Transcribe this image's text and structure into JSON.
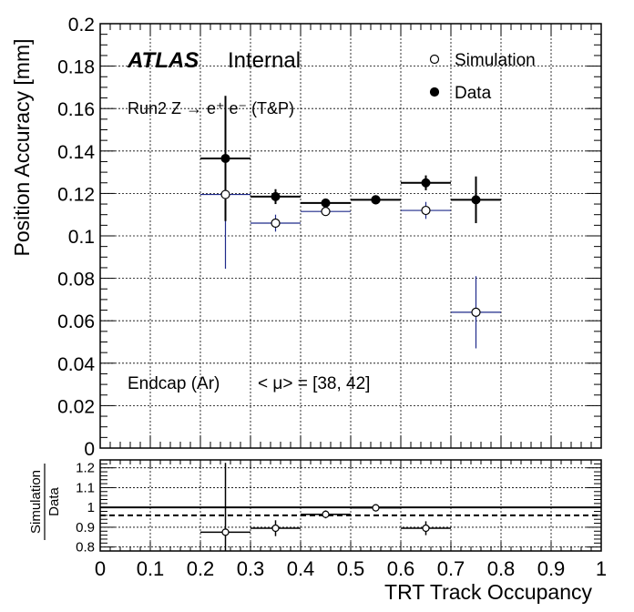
{
  "chart_data": [
    {
      "type": "scatter",
      "panel": "main",
      "ylabel": "Position Accuracy [mm]",
      "xlim": [
        0,
        1
      ],
      "ylim": [
        0,
        0.2
      ],
      "yticks": [
        "0",
        "0.02",
        "0.04",
        "0.06",
        "0.08",
        "0.1",
        "0.12",
        "0.14",
        "0.16",
        "0.18",
        "0.2"
      ],
      "grid": true,
      "legend_position": "top-right",
      "atlas_label": "ATLAS",
      "atlas_status": "Internal",
      "run_label": "Run2 Z → e⁺ e⁻ (T&P)",
      "region_label": "Endcap (Ar)",
      "mu_label": "< μ> = [38, 42]",
      "colors": {
        "simulation_error": "#1f2a8a",
        "data": "#000000"
      },
      "series": [
        {
          "name": "Simulation",
          "marker": "open-circle",
          "points": [
            {
              "x": 0.25,
              "xerr": 0.05,
              "y": 0.1195,
              "yerr": 0.035
            },
            {
              "x": 0.35,
              "xerr": 0.05,
              "y": 0.106,
              "yerr": 0.004
            },
            {
              "x": 0.45,
              "xerr": 0.05,
              "y": 0.1115,
              "yerr": 0.002
            },
            {
              "x": 0.55,
              "xerr": 0.05,
              "y": 0.117,
              "yerr": 0.002
            },
            {
              "x": 0.65,
              "xerr": 0.05,
              "y": 0.112,
              "yerr": 0.004
            },
            {
              "x": 0.75,
              "xerr": 0.05,
              "y": 0.064,
              "yerr": 0.017
            }
          ]
        },
        {
          "name": "Data",
          "marker": "filled-circle",
          "points": [
            {
              "x": 0.25,
              "xerr": 0.05,
              "y": 0.1365,
              "yerr": 0.0295
            },
            {
              "x": 0.35,
              "xerr": 0.05,
              "y": 0.1185,
              "yerr": 0.0035
            },
            {
              "x": 0.45,
              "xerr": 0.05,
              "y": 0.1155,
              "yerr": 0.002
            },
            {
              "x": 0.55,
              "xerr": 0.05,
              "y": 0.117,
              "yerr": 0.0015
            },
            {
              "x": 0.65,
              "xerr": 0.05,
              "y": 0.125,
              "yerr": 0.0035
            },
            {
              "x": 0.75,
              "xerr": 0.05,
              "y": 0.117,
              "yerr": 0.011
            }
          ]
        }
      ]
    },
    {
      "type": "scatter",
      "panel": "ratio",
      "ylabel_top": "Simulation",
      "ylabel_bottom": "Data",
      "xlabel": "TRT Track Occupancy",
      "xlim": [
        0,
        1
      ],
      "ylim": [
        0.78,
        1.24
      ],
      "xticks": [
        "0",
        "0.1",
        "0.2",
        "0.3",
        "0.4",
        "0.5",
        "0.6",
        "0.7",
        "0.8",
        "0.9",
        "1"
      ],
      "yticks": [
        "0.8",
        "0.9",
        "1",
        "1.1",
        "1.2"
      ],
      "reference_line": 1.0,
      "dashed_line": 0.96,
      "grid": true,
      "points": [
        {
          "x": 0.25,
          "xerr": 0.05,
          "y": 0.875,
          "yerr": 0.35
        },
        {
          "x": 0.35,
          "xerr": 0.05,
          "y": 0.895,
          "yerr": 0.04
        },
        {
          "x": 0.45,
          "xerr": 0.05,
          "y": 0.965,
          "yerr": 0.02
        },
        {
          "x": 0.55,
          "xerr": 0.05,
          "y": 0.998,
          "yerr": 0.018
        },
        {
          "x": 0.65,
          "xerr": 0.05,
          "y": 0.895,
          "yerr": 0.035
        }
      ]
    }
  ]
}
